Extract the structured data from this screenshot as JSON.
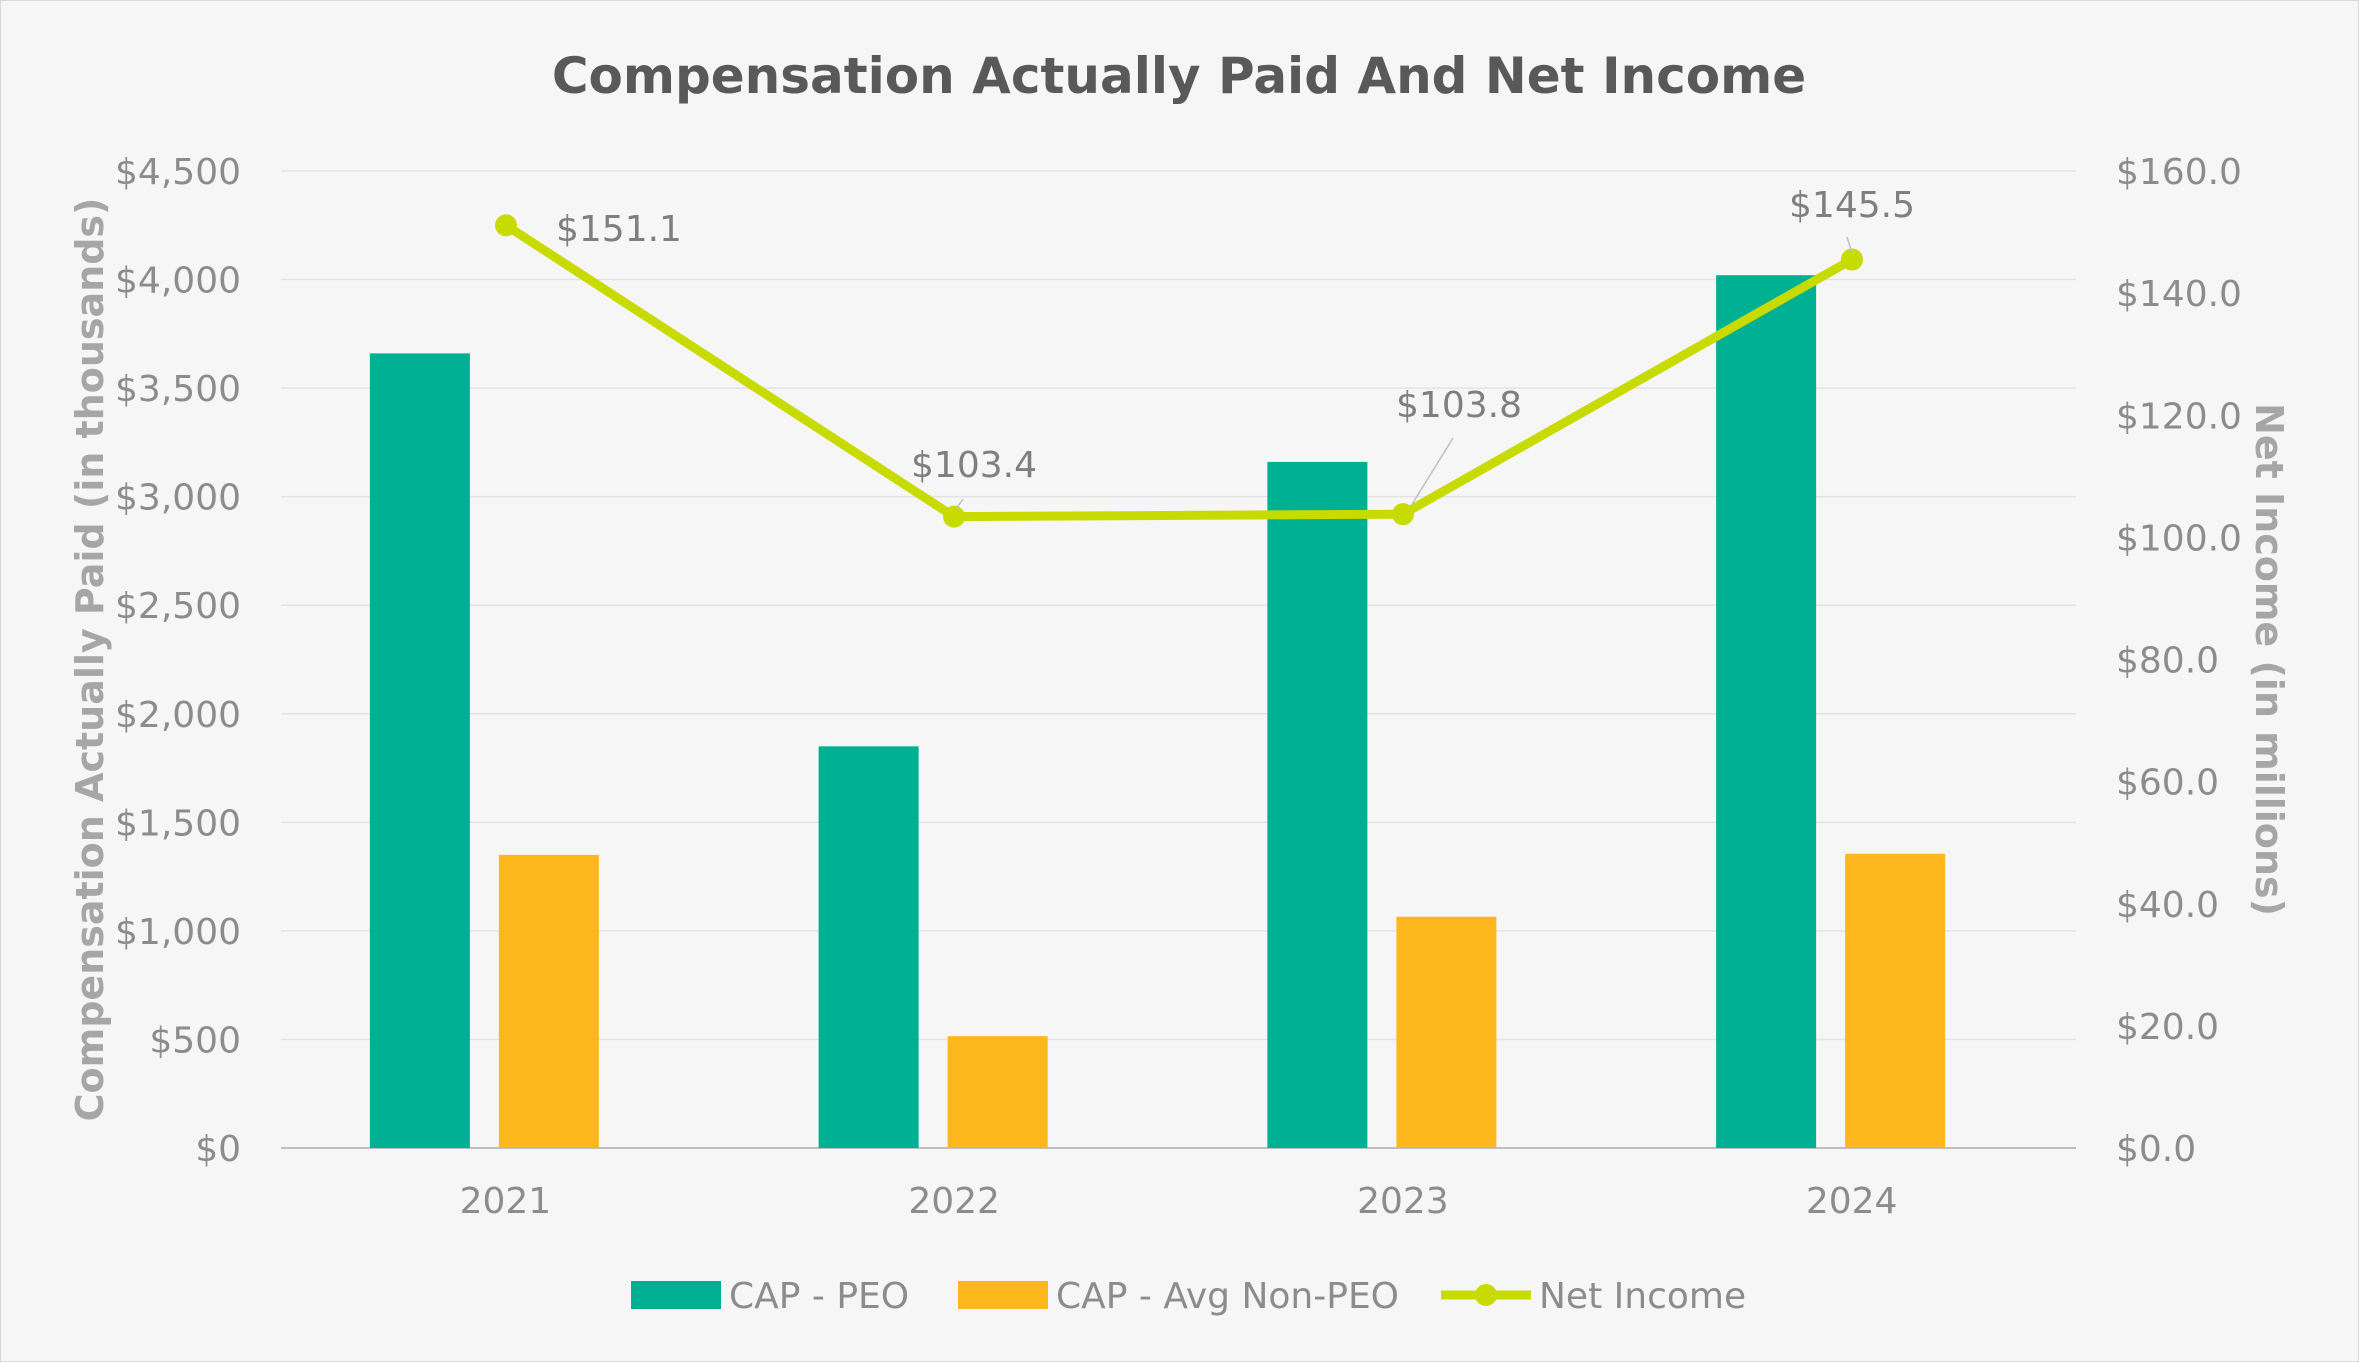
{
  "chart_data": {
    "type": "bar",
    "title": "Compensation Actually Paid And Net Income",
    "categories": [
      "2021",
      "2022",
      "2023",
      "2024"
    ],
    "series": [
      {
        "name": "CAP - PEO",
        "type": "bar",
        "axis": "left",
        "color": "#00b092",
        "values": [
          3660,
          1850,
          3160,
          4020
        ]
      },
      {
        "name": "CAP - Avg Non-PEO",
        "type": "bar",
        "axis": "left",
        "color": "#fdb71c",
        "values": [
          1350,
          515,
          1065,
          1355
        ]
      },
      {
        "name": "Net Income",
        "type": "line",
        "axis": "right",
        "color": "#c8db00",
        "values": [
          151.1,
          103.4,
          103.8,
          145.5
        ],
        "data_labels": [
          "$151.1",
          "$103.4",
          "$103.8",
          "$145.5"
        ]
      }
    ],
    "ylabel": "Compensation Actually Paid (in thousands)",
    "ylabel_right": "Net Income (in millions)",
    "ylim": [
      0,
      4500
    ],
    "ylim_right": [
      0,
      160
    ],
    "yticks": [
      "$0",
      "$500",
      "$1,000",
      "$1,500",
      "$2,000",
      "$2,500",
      "$3,000",
      "$3,500",
      "$4,000",
      "$4,500"
    ],
    "yticks_right": [
      "$0.0",
      "$20.0",
      "$40.0",
      "$60.0",
      "$80.0",
      "$100.0",
      "$120.0",
      "$140.0",
      "$160.0"
    ],
    "grid": true,
    "legend_position": "bottom-center"
  }
}
